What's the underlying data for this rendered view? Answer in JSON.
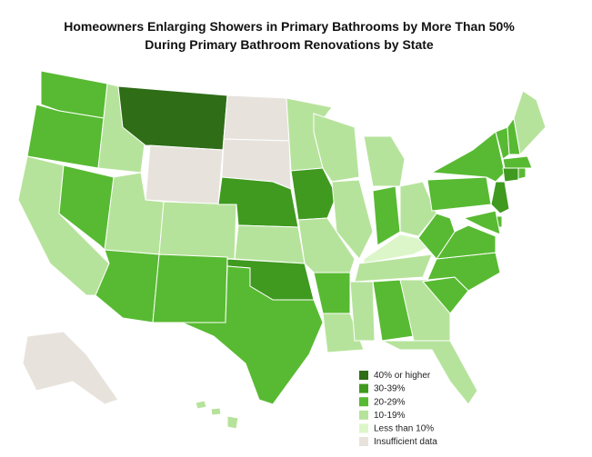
{
  "title": [
    "Homeowners Enlarging Showers in Primary Bathrooms by More Than 50%",
    "During Primary Bathroom Renovations by State"
  ],
  "legend": [
    {
      "label": "40% or higher",
      "color": "#2f6d17"
    },
    {
      "label": "30-39%",
      "color": "#3f9a1f"
    },
    {
      "label": "20-29%",
      "color": "#58ba32"
    },
    {
      "label": "10-19%",
      "color": "#b6e39b"
    },
    {
      "label": "Less than 10%",
      "color": "#dcf6c9"
    },
    {
      "label": "Insufficient data",
      "color": "#e7e3dc"
    }
  ],
  "regions": [
    2,
    2,
    3,
    2,
    3,
    0,
    5,
    3,
    2,
    3,
    2,
    5,
    5,
    1,
    3,
    1,
    2,
    3,
    1,
    3,
    2,
    3,
    3,
    3,
    3,
    2,
    3,
    4,
    3,
    3,
    2,
    3,
    3,
    2,
    2,
    2,
    2,
    2,
    2,
    2,
    2,
    3,
    2,
    1,
    2,
    1,
    2,
    2,
    5,
    3,
    3,
    3
  ]
}
